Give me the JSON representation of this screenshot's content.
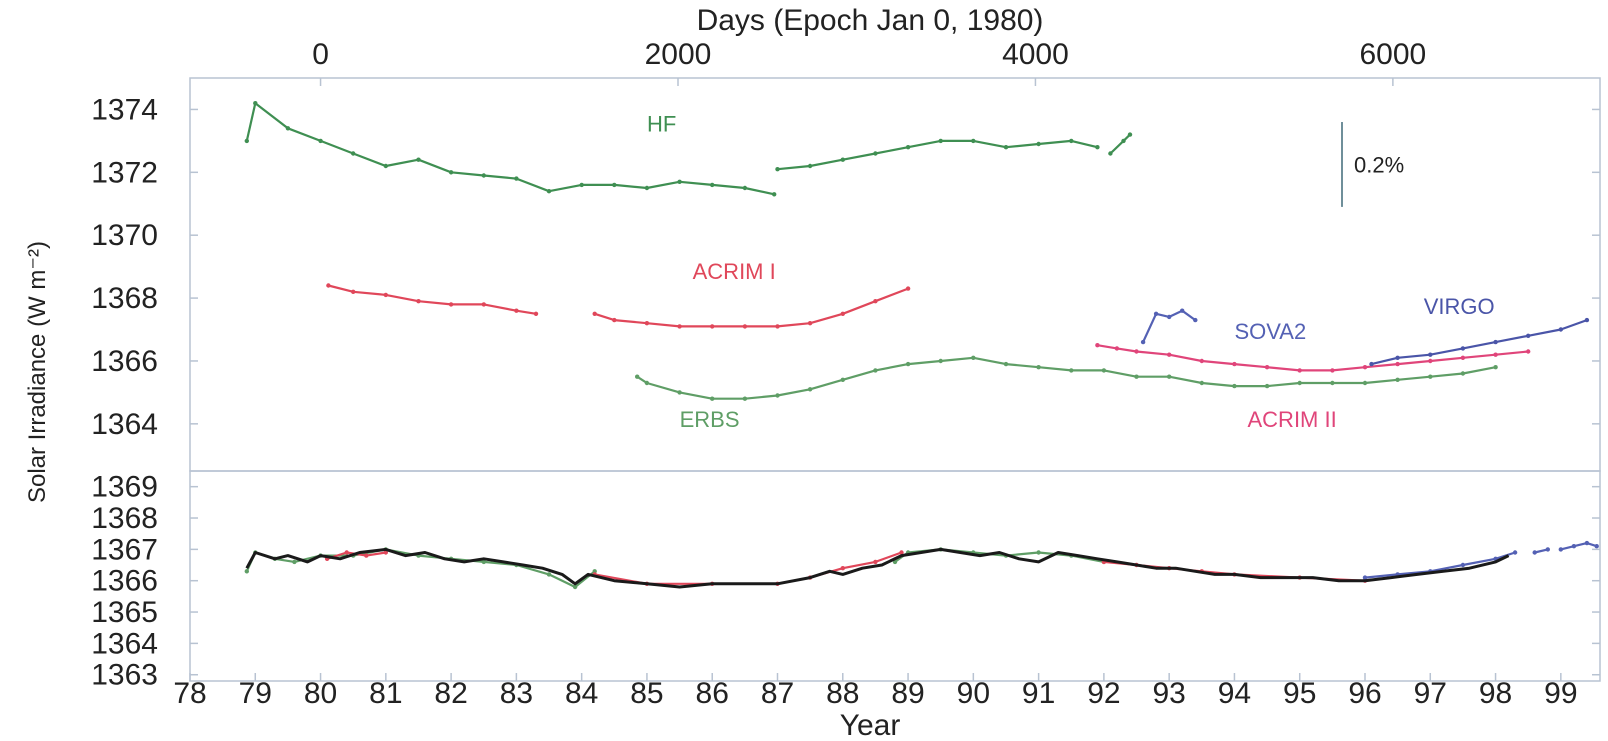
{
  "chart_data": [
    {
      "type": "line",
      "panel": "upper",
      "top_axis": {
        "label": "Days (Epoch Jan 0, 1980)",
        "tick_values": [
          0,
          2000,
          4000,
          6000
        ],
        "tick_labels": [
          "0",
          "2000",
          "4000",
          "6000"
        ]
      },
      "ylabel": "Solar Irradiance (W m⁻²)",
      "ylim": [
        1362.5,
        1375.0
      ],
      "y_tick_values": [
        1364,
        1366,
        1368,
        1370,
        1372,
        1374
      ],
      "y_tick_labels": [
        "1364",
        "1366",
        "1368",
        "1370",
        "1372",
        "1374"
      ],
      "scale_bar_label": "0.2%",
      "scale_bar_value": [
        1370.9,
        1373.6
      ],
      "series": [
        {
          "name": "HF",
          "color": "#3f8f52",
          "label_at": [
            1985.0,
            1373.3
          ],
          "segments": [
            {
              "x": [
                1978.87,
                1979.0,
                1979.5,
                1980.0,
                1980.5,
                1981.0,
                1981.5,
                1982.0,
                1982.5,
                1983.0,
                1983.5,
                1984.0,
                1984.5,
                1985.0,
                1985.5,
                1986.0,
                1986.5,
                1986.95
              ],
              "y": [
                1373.0,
                1374.2,
                1373.4,
                1373.0,
                1372.6,
                1372.2,
                1372.4,
                1372.0,
                1371.9,
                1371.8,
                1371.4,
                1371.6,
                1371.6,
                1371.5,
                1371.7,
                1371.6,
                1371.5,
                1371.3
              ]
            },
            {
              "x": [
                1987.0,
                1987.5,
                1988.0,
                1988.5,
                1989.0,
                1989.5,
                1990.0,
                1990.5,
                1991.0,
                1991.5,
                1991.9
              ],
              "y": [
                1372.1,
                1372.2,
                1372.4,
                1372.6,
                1372.8,
                1373.0,
                1373.0,
                1372.8,
                1372.9,
                1373.0,
                1372.8
              ]
            },
            {
              "x": [
                1992.1,
                1992.3,
                1992.4
              ],
              "y": [
                1372.6,
                1373.0,
                1373.2
              ]
            }
          ]
        },
        {
          "name": "ACRIM I",
          "color": "#e0475a",
          "label_at": [
            1985.7,
            1368.6
          ],
          "segments": [
            {
              "x": [
                1980.12,
                1980.5,
                1981.0,
                1981.5,
                1982.0,
                1982.5,
                1983.0,
                1983.3
              ],
              "y": [
                1368.4,
                1368.2,
                1368.1,
                1367.9,
                1367.8,
                1367.8,
                1367.6,
                1367.5
              ]
            },
            {
              "x": [
                1984.2,
                1984.5,
                1985.0,
                1985.5,
                1986.0,
                1986.5,
                1987.0,
                1987.5,
                1988.0,
                1988.5,
                1989.0
              ],
              "y": [
                1367.5,
                1367.3,
                1367.2,
                1367.1,
                1367.1,
                1367.1,
                1367.1,
                1367.2,
                1367.5,
                1367.9,
                1368.3
              ]
            }
          ]
        },
        {
          "name": "ERBS",
          "color": "#5f9e66",
          "label_at": [
            1985.5,
            1363.9
          ],
          "segments": [
            {
              "x": [
                1984.85,
                1985.0,
                1985.5,
                1986.0,
                1986.5,
                1987.0,
                1987.5,
                1988.0,
                1988.5,
                1989.0,
                1989.5,
                1990.0,
                1990.5,
                1991.0,
                1991.5,
                1992.0,
                1992.5,
                1993.0,
                1993.5,
                1994.0,
                1994.5,
                1995.0,
                1995.5,
                1996.0,
                1996.5,
                1997.0,
                1997.5,
                1998.0
              ],
              "y": [
                1365.5,
                1365.3,
                1365.0,
                1364.8,
                1364.8,
                1364.9,
                1365.1,
                1365.4,
                1365.7,
                1365.9,
                1366.0,
                1366.1,
                1365.9,
                1365.8,
                1365.7,
                1365.7,
                1365.5,
                1365.5,
                1365.3,
                1365.2,
                1365.2,
                1365.3,
                1365.3,
                1365.3,
                1365.4,
                1365.5,
                1365.6,
                1365.8
              ]
            }
          ]
        },
        {
          "name": "ACRIM II",
          "color": "#e0457a",
          "label_at": [
            1994.2,
            1363.9
          ],
          "segments": [
            {
              "x": [
                1991.9,
                1992.2,
                1992.5,
                1993.0,
                1993.5,
                1994.0,
                1994.5,
                1995.0,
                1995.5,
                1996.0,
                1996.5,
                1997.0,
                1997.5,
                1998.0,
                1998.5
              ],
              "y": [
                1366.5,
                1366.4,
                1366.3,
                1366.2,
                1366.0,
                1365.9,
                1365.8,
                1365.7,
                1365.7,
                1365.8,
                1365.9,
                1366.0,
                1366.1,
                1366.2,
                1366.3
              ]
            }
          ]
        },
        {
          "name": "SOVA2",
          "color": "#5461b4",
          "label_at": [
            1994.0,
            1366.7
          ],
          "segments": [
            {
              "x": [
                1992.6,
                1992.8,
                1993.0,
                1993.2,
                1993.4
              ],
              "y": [
                1366.6,
                1367.5,
                1367.4,
                1367.6,
                1367.3
              ]
            }
          ]
        },
        {
          "name": "VIRGO",
          "color": "#4a55a8",
          "label_at": [
            1996.9,
            1367.5
          ],
          "segments": [
            {
              "x": [
                1996.1,
                1996.5,
                1997.0,
                1997.5,
                1998.0,
                1998.5,
                1999.0,
                1999.4
              ],
              "y": [
                1365.9,
                1366.1,
                1366.2,
                1366.4,
                1366.6,
                1366.8,
                1367.0,
                1367.3
              ]
            }
          ]
        }
      ]
    },
    {
      "type": "line",
      "panel": "lower",
      "xlabel": "Year",
      "xlim": [
        1978.0,
        1999.6
      ],
      "x_tick_values": [
        1978,
        1979,
        1980,
        1981,
        1982,
        1983,
        1984,
        1985,
        1986,
        1987,
        1988,
        1989,
        1990,
        1991,
        1992,
        1993,
        1994,
        1995,
        1996,
        1997,
        1998,
        1999
      ],
      "x_tick_labels": [
        "78",
        "79",
        "80",
        "81",
        "82",
        "83",
        "84",
        "85",
        "86",
        "87",
        "88",
        "89",
        "90",
        "91",
        "92",
        "93",
        "94",
        "95",
        "96",
        "97",
        "98",
        "99"
      ],
      "ylim": [
        1362.8,
        1369.5
      ],
      "y_tick_values": [
        1363,
        1364,
        1365,
        1366,
        1367,
        1368,
        1369
      ],
      "y_tick_labels": [
        "1363",
        "1364",
        "1365",
        "1366",
        "1367",
        "1368",
        "1369"
      ],
      "series": [
        {
          "color": "#5f9e66",
          "segments": [
            {
              "x": [
                1978.87,
                1979.0,
                1979.3,
                1979.6,
                1980.0,
                1980.5,
                1981.0,
                1981.5,
                1982.0,
                1982.5,
                1983.0,
                1983.5,
                1983.9,
                1984.2
              ],
              "y": [
                1366.3,
                1366.9,
                1366.7,
                1366.6,
                1366.8,
                1366.8,
                1367.0,
                1366.8,
                1366.7,
                1366.6,
                1366.5,
                1366.2,
                1365.8,
                1366.3
              ]
            },
            {
              "x": [
                1988.8,
                1989.0,
                1989.5,
                1990.0,
                1990.5,
                1991.0,
                1991.5,
                1992.0
              ],
              "y": [
                1366.6,
                1366.9,
                1367.0,
                1366.9,
                1366.8,
                1366.9,
                1366.8,
                1366.6
              ]
            }
          ]
        },
        {
          "color": "#e0475a",
          "segments": [
            {
              "x": [
                1980.1,
                1980.4,
                1980.7,
                1981.0
              ],
              "y": [
                1366.7,
                1366.9,
                1366.8,
                1366.9
              ]
            },
            {
              "x": [
                1984.2,
                1985.0,
                1986.0,
                1987.0,
                1987.5,
                1988.0,
                1988.5,
                1988.9
              ],
              "y": [
                1366.2,
                1365.9,
                1365.9,
                1365.9,
                1366.1,
                1366.4,
                1366.6,
                1366.9
              ]
            },
            {
              "x": [
                1992.0,
                1992.5,
                1993.0,
                1993.5,
                1994.0,
                1995.0,
                1996.0
              ],
              "y": [
                1366.6,
                1366.5,
                1366.4,
                1366.3,
                1366.2,
                1366.1,
                1366.0
              ]
            }
          ]
        },
        {
          "color": "#5461b4",
          "segments": [
            {
              "x": [
                1996.0,
                1996.5,
                1997.0,
                1997.5,
                1998.0,
                1998.3
              ],
              "y": [
                1366.1,
                1366.2,
                1366.3,
                1366.5,
                1366.7,
                1366.9
              ]
            },
            {
              "x": [
                1998.6,
                1998.8
              ],
              "y": [
                1366.9,
                1367.0
              ]
            },
            {
              "x": [
                1999.0,
                1999.2,
                1999.4,
                1999.55
              ],
              "y": [
                1367.0,
                1367.1,
                1367.2,
                1367.1
              ]
            }
          ]
        },
        {
          "color": "#1a1a1a",
          "segments": [
            {
              "x": [
                1978.87,
                1979.0,
                1979.3,
                1979.5,
                1979.8,
                1980.0,
                1980.3,
                1980.6,
                1981.0,
                1981.3,
                1981.6,
                1981.9,
                1982.2,
                1982.5,
                1982.8,
                1983.1,
                1983.4,
                1983.7,
                1983.9,
                1984.1,
                1984.5,
                1985.0,
                1985.5,
                1986.0,
                1986.5,
                1987.0,
                1987.5,
                1987.8,
                1988.0,
                1988.3,
                1988.6,
                1988.9,
                1989.2,
                1989.5,
                1989.8,
                1990.1,
                1990.4,
                1990.7,
                1991.0,
                1991.3,
                1991.6,
                1991.9,
                1992.2,
                1992.5,
                1992.8,
                1993.1,
                1993.4,
                1993.7,
                1994.0,
                1994.4,
                1994.8,
                1995.2,
                1995.6,
                1996.0,
                1996.4,
                1996.8,
                1997.2,
                1997.6,
                1998.0,
                1998.2
              ],
              "y": [
                1366.4,
                1366.9,
                1366.7,
                1366.8,
                1366.6,
                1366.8,
                1366.7,
                1366.9,
                1367.0,
                1366.8,
                1366.9,
                1366.7,
                1366.6,
                1366.7,
                1366.6,
                1366.5,
                1366.4,
                1366.2,
                1365.9,
                1366.2,
                1366.0,
                1365.9,
                1365.8,
                1365.9,
                1365.9,
                1365.9,
                1366.1,
                1366.3,
                1366.2,
                1366.4,
                1366.5,
                1366.8,
                1366.9,
                1367.0,
                1366.9,
                1366.8,
                1366.9,
                1366.7,
                1366.6,
                1366.9,
                1366.8,
                1366.7,
                1366.6,
                1366.5,
                1366.4,
                1366.4,
                1366.3,
                1366.2,
                1366.2,
                1366.1,
                1366.1,
                1366.1,
                1366.0,
                1366.0,
                1366.1,
                1366.2,
                1366.3,
                1366.4,
                1366.6,
                1366.8
              ]
            }
          ]
        }
      ]
    }
  ]
}
